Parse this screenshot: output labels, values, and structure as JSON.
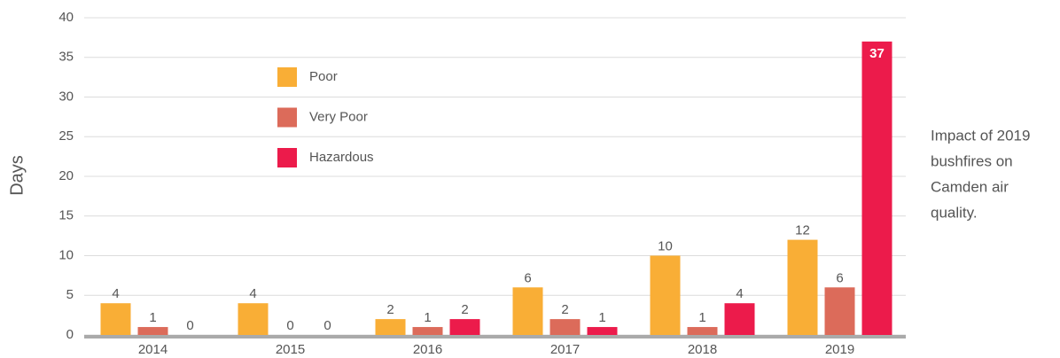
{
  "chart_data": {
    "type": "bar",
    "y_label": "Days",
    "annotation": [
      "Impact of 2019",
      "bushfires on",
      "Camden air",
      "quality."
    ],
    "categories": [
      "2014",
      "2015",
      "2016",
      "2017",
      "2018",
      "2019"
    ],
    "series": [
      {
        "name": "Poor",
        "color": "#f9ae36",
        "values": [
          4,
          4,
          2,
          6,
          10,
          12
        ]
      },
      {
        "name": "Very Poor",
        "color": "#dc6b5a",
        "values": [
          1,
          0,
          1,
          2,
          1,
          6
        ]
      },
      {
        "name": "Hazardous",
        "color": "#ec1b4b",
        "values": [
          0,
          0,
          2,
          1,
          4,
          37
        ]
      }
    ],
    "ylim": [
      0,
      40
    ],
    "yticks": [
      0,
      5,
      10,
      15,
      20,
      25,
      30,
      35,
      40
    ],
    "grid": true
  }
}
